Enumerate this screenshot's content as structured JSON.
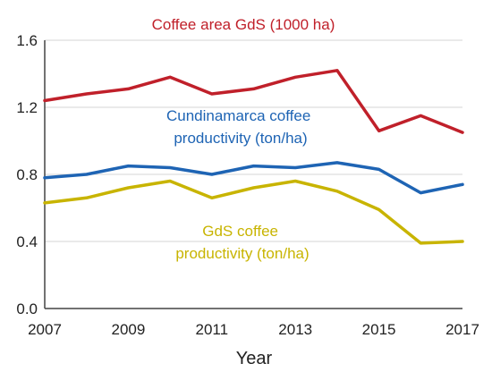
{
  "chart_data": {
    "type": "line",
    "title": "",
    "xlabel": "Year",
    "ylabel": "",
    "x": [
      2007,
      2008,
      2009,
      2010,
      2011,
      2012,
      2013,
      2014,
      2015,
      2016,
      2017
    ],
    "xlim": [
      2007,
      2017
    ],
    "ylim": [
      0,
      1.6
    ],
    "x_ticks": [
      "2007",
      "2009",
      "2011",
      "2013",
      "2015",
      "2017"
    ],
    "y_ticks": [
      "0.0",
      "0.4",
      "0.8",
      "1.2",
      "1.6"
    ],
    "grid": "horizontal",
    "legend": "none (series labelled directly on the plot)",
    "series": [
      {
        "name": "Coffee area GdS (1000 ha)",
        "color": "#c0202a",
        "values": [
          1.24,
          1.28,
          1.31,
          1.38,
          1.28,
          1.31,
          1.38,
          1.42,
          1.06,
          1.15,
          1.05
        ]
      },
      {
        "name": "Cundinamarca coffee productivity (ton/ha)",
        "label_lines": [
          "Cundinamarca coffee",
          "productivity (ton/ha)"
        ],
        "color": "#1e64b4",
        "values": [
          0.78,
          0.8,
          0.85,
          0.84,
          0.8,
          0.85,
          0.84,
          0.87,
          0.83,
          0.69,
          0.74
        ]
      },
      {
        "name": "GdS coffee productivity (ton/ha)",
        "label_lines": [
          "GdS coffee",
          "productivity (ton/ha)"
        ],
        "color": "#c8b400",
        "values": [
          0.63,
          0.66,
          0.72,
          0.76,
          0.66,
          0.72,
          0.76,
          0.7,
          0.59,
          0.39,
          0.4
        ]
      }
    ]
  }
}
